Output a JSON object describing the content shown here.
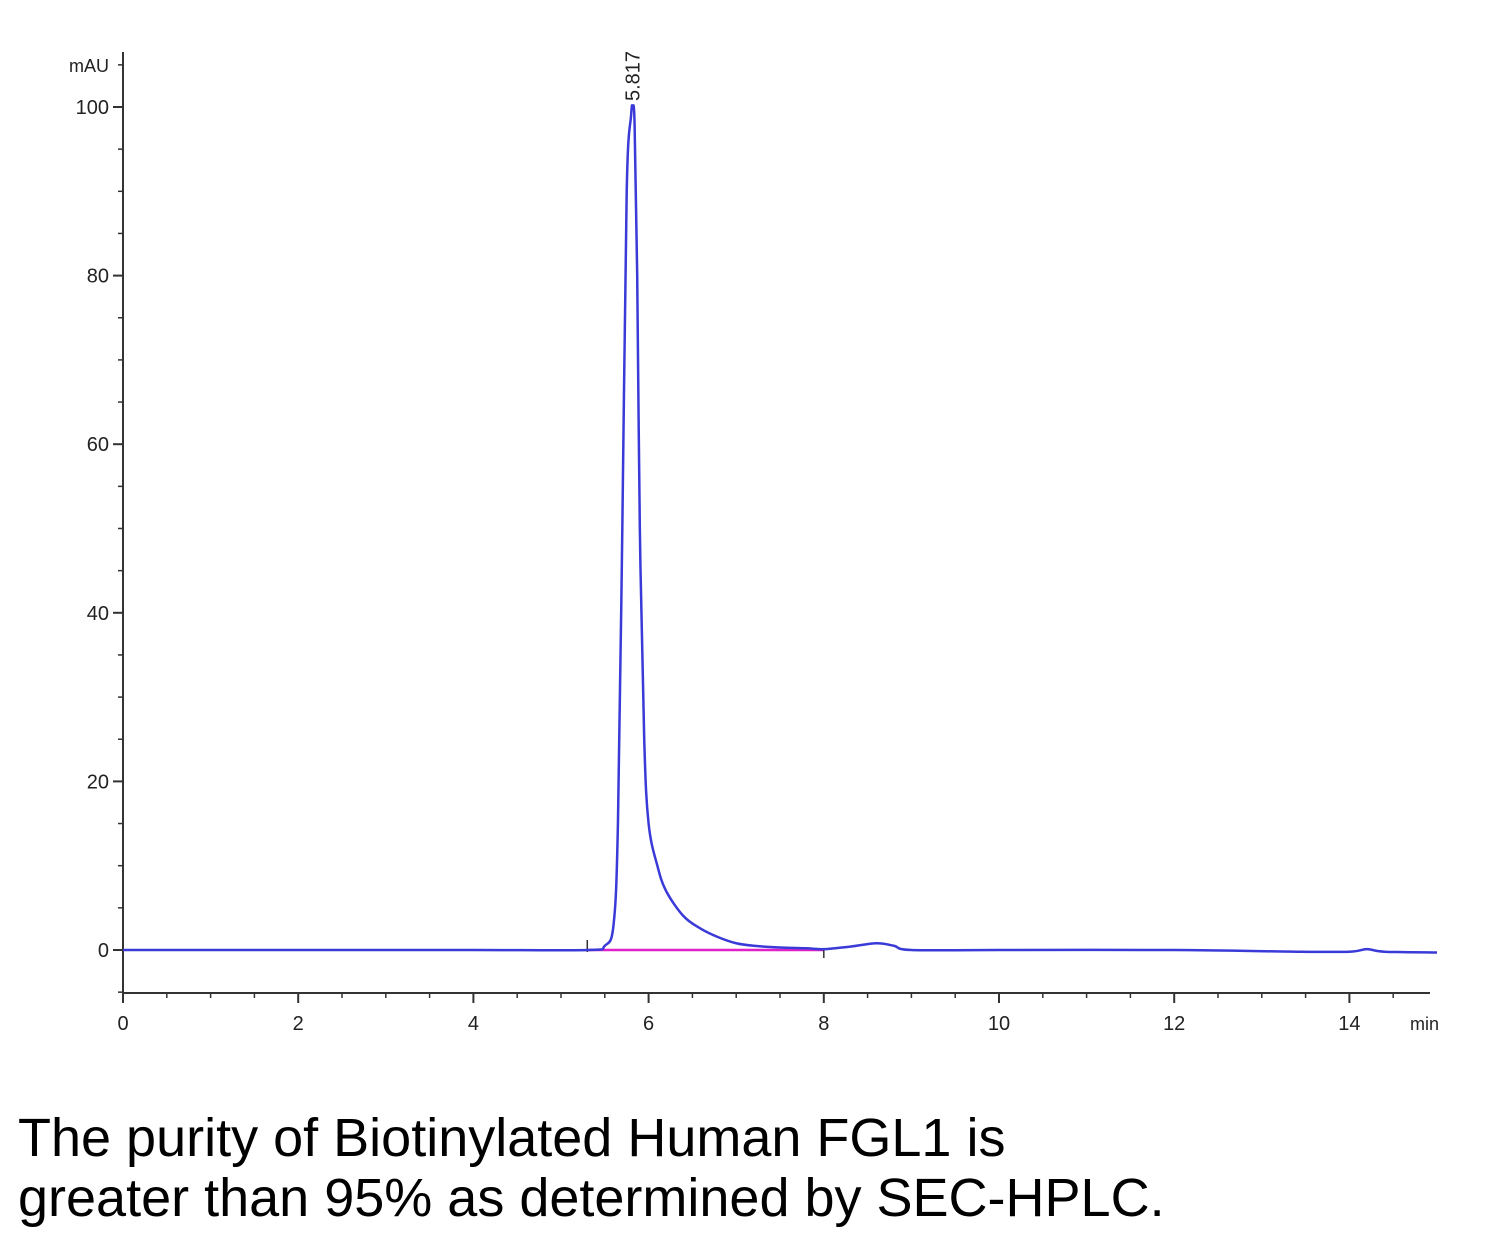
{
  "chart_data": {
    "type": "line",
    "title": "",
    "xlabel": "min",
    "ylabel": "mAU",
    "xlim": [
      0,
      15
    ],
    "ylim": [
      -5,
      106
    ],
    "x_ticks": [
      0,
      2,
      4,
      6,
      8,
      10,
      12,
      14
    ],
    "y_ticks": [
      0,
      20,
      40,
      60,
      80,
      100
    ],
    "grid": false,
    "series": [
      {
        "color": "#3a3ad8",
        "x": [
          0,
          2,
          4,
          5.3,
          5.5,
          5.6,
          5.65,
          5.7,
          5.75,
          5.8,
          5.817,
          5.84,
          5.87,
          5.9,
          5.95,
          6.0,
          6.1,
          6.2,
          6.4,
          6.6,
          6.8,
          7.0,
          7.2,
          7.5,
          7.8,
          8.0,
          8.3,
          8.6,
          8.8,
          9.0,
          10,
          12,
          13.4,
          14.0,
          14.2,
          14.4,
          15.0
        ],
        "y": [
          0,
          0,
          0,
          0,
          0.5,
          3,
          15,
          50,
          90,
          99,
          100,
          98,
          80,
          50,
          25,
          15,
          10,
          7,
          4,
          2.5,
          1.5,
          0.8,
          0.5,
          0.3,
          0.2,
          0.1,
          0.4,
          0.8,
          0.5,
          0,
          0,
          0,
          -0.2,
          -0.2,
          0.1,
          -0.2,
          -0.3
        ]
      }
    ],
    "baseline": {
      "color": "#e020c8",
      "x": [
        5.3,
        8.0
      ],
      "y": [
        0,
        0
      ]
    },
    "annotations": [
      {
        "text": "5.817",
        "x": 5.817,
        "y": 100
      }
    ]
  },
  "caption": {
    "line1": "The purity of Biotinylated Human FGL1 is",
    "line2": "greater than 95% as determined by SEC-HPLC."
  }
}
